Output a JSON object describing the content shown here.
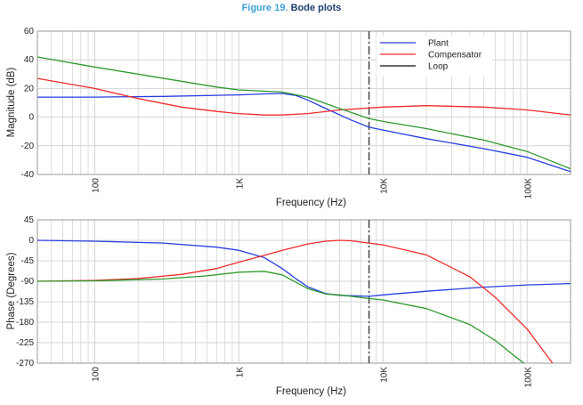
{
  "figure": {
    "number": "Figure 19.",
    "title": "Bode plots"
  },
  "colors": {
    "plant": "#2a3fe0",
    "compensator": "#ef2b2b",
    "loop": "#2e9a2e",
    "grid": "#d4d4d4",
    "marker": "#444444"
  },
  "chart_data": [
    {
      "type": "line",
      "ylabel": "Magnitude (dB)",
      "xlabel": "Frequency (Hz)",
      "xscale": "log",
      "xlim": [
        40,
        200000
      ],
      "ylim": [
        -40,
        60
      ],
      "yticks": [
        60,
        40,
        20,
        0,
        -20,
        -40
      ],
      "xticks": [
        {
          "value": 100,
          "label": "100"
        },
        {
          "value": 1000,
          "label": "1K"
        },
        {
          "value": 10000,
          "label": "10K"
        },
        {
          "value": 100000,
          "label": "100K"
        }
      ],
      "grid": true,
      "legend": "top-right",
      "crossover_marker_hz": 8000,
      "series": [
        {
          "name": "Plant",
          "color": "#2a3fe0",
          "points": [
            [
              40,
              14
            ],
            [
              100,
              14
            ],
            [
              300,
              14.5
            ],
            [
              1000,
              15.5
            ],
            [
              1500,
              16.2
            ],
            [
              2000,
              16.5
            ],
            [
              2500,
              15
            ],
            [
              3000,
              12
            ],
            [
              4000,
              6
            ],
            [
              6000,
              -2
            ],
            [
              8000,
              -7
            ],
            [
              10000,
              -9
            ],
            [
              20000,
              -15
            ],
            [
              50000,
              -22
            ],
            [
              100000,
              -28
            ],
            [
              200000,
              -38
            ]
          ]
        },
        {
          "name": "Compensator",
          "color": "#ef2b2b",
          "points": [
            [
              40,
              27
            ],
            [
              100,
              20
            ],
            [
              200,
              13
            ],
            [
              400,
              7
            ],
            [
              700,
              4
            ],
            [
              1000,
              2.5
            ],
            [
              1500,
              1.5
            ],
            [
              2000,
              1.5
            ],
            [
              3000,
              2.5
            ],
            [
              5000,
              5
            ],
            [
              10000,
              7
            ],
            [
              20000,
              8
            ],
            [
              50000,
              7
            ],
            [
              100000,
              5
            ],
            [
              200000,
              1.5
            ]
          ]
        },
        {
          "name": "Loop",
          "color": "#2e9a2e",
          "points": [
            [
              40,
              42
            ],
            [
              100,
              35
            ],
            [
              200,
              30
            ],
            [
              400,
              25
            ],
            [
              700,
              21
            ],
            [
              1000,
              19
            ],
            [
              2000,
              17.5
            ],
            [
              3000,
              14
            ],
            [
              5000,
              6
            ],
            [
              8000,
              -1
            ],
            [
              10000,
              -3
            ],
            [
              20000,
              -8
            ],
            [
              50000,
              -16
            ],
            [
              100000,
              -24
            ],
            [
              200000,
              -36
            ]
          ]
        }
      ]
    },
    {
      "type": "line",
      "ylabel": "Phase (Degrees)",
      "xlabel": "Frequency (Hz)",
      "xscale": "log",
      "xlim": [
        40,
        200000
      ],
      "ylim": [
        -270,
        45
      ],
      "yticks": [
        45,
        0,
        -45,
        -90,
        -135,
        -180,
        -225,
        -270
      ],
      "xticks": [
        {
          "value": 100,
          "label": "100"
        },
        {
          "value": 1000,
          "label": "1K"
        },
        {
          "value": 10000,
          "label": "10K"
        },
        {
          "value": 100000,
          "label": "100K"
        }
      ],
      "grid": true,
      "crossover_marker_hz": 8000,
      "series": [
        {
          "name": "Plant",
          "color": "#2a3fe0",
          "points": [
            [
              40,
              0
            ],
            [
              100,
              -2
            ],
            [
              300,
              -6
            ],
            [
              700,
              -15
            ],
            [
              1000,
              -22
            ],
            [
              1500,
              -38
            ],
            [
              2000,
              -62
            ],
            [
              2500,
              -85
            ],
            [
              3000,
              -102
            ],
            [
              4000,
              -117
            ],
            [
              5000,
              -121
            ],
            [
              8000,
              -123
            ],
            [
              10000,
              -120
            ],
            [
              20000,
              -112
            ],
            [
              50000,
              -103
            ],
            [
              100000,
              -98
            ],
            [
              200000,
              -95
            ]
          ]
        },
        {
          "name": "Compensator",
          "color": "#ef2b2b",
          "points": [
            [
              40,
              -90
            ],
            [
              100,
              -88
            ],
            [
              200,
              -84
            ],
            [
              400,
              -75
            ],
            [
              700,
              -62
            ],
            [
              1000,
              -48
            ],
            [
              1500,
              -33
            ],
            [
              2000,
              -22
            ],
            [
              3000,
              -8
            ],
            [
              4000,
              -2
            ],
            [
              5000,
              0
            ],
            [
              6000,
              -1
            ],
            [
              8000,
              -6
            ],
            [
              10000,
              -10
            ],
            [
              20000,
              -32
            ],
            [
              40000,
              -80
            ],
            [
              60000,
              -125
            ],
            [
              100000,
              -195
            ],
            [
              150000,
              -270
            ]
          ]
        },
        {
          "name": "Loop",
          "color": "#2e9a2e",
          "points": [
            [
              40,
              -90
            ],
            [
              100,
              -89
            ],
            [
              300,
              -85
            ],
            [
              600,
              -78
            ],
            [
              1000,
              -70
            ],
            [
              1500,
              -68
            ],
            [
              2000,
              -76
            ],
            [
              3000,
              -106
            ],
            [
              4000,
              -118
            ],
            [
              5000,
              -120
            ],
            [
              8000,
              -128
            ],
            [
              10000,
              -131
            ],
            [
              20000,
              -150
            ],
            [
              40000,
              -185
            ],
            [
              60000,
              -220
            ],
            [
              80000,
              -252
            ],
            [
              95000,
              -270
            ]
          ]
        }
      ]
    }
  ]
}
